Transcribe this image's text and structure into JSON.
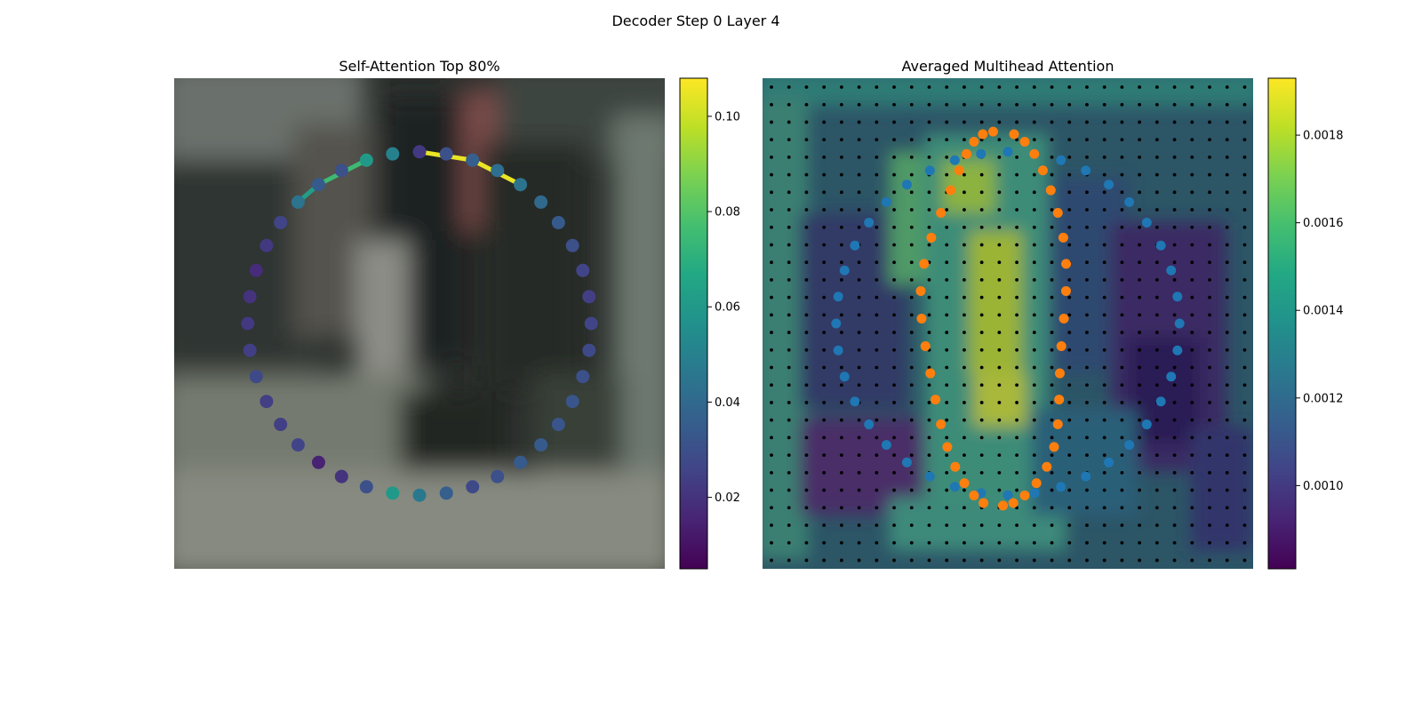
{
  "figure": {
    "suptitle": "Decoder Step 0 Layer 4"
  },
  "chart_data": [
    {
      "type": "scatter",
      "title": "Self-Attention Top 80%",
      "xlabel": "",
      "ylabel": "",
      "axes_visible": false,
      "background": "blurred street-scene photo",
      "colormap": "viridis",
      "colorbar": {
        "range": [
          0.005,
          0.108
        ],
        "ticks": [
          0.02,
          0.04,
          0.06,
          0.08,
          0.1
        ],
        "tick_labels": [
          "0.02",
          "0.04",
          "0.06",
          "0.08",
          "0.10"
        ]
      },
      "polygon_points": {
        "count": 40,
        "shape": "circle",
        "center": [
          0.5,
          0.5
        ],
        "radius": 0.35,
        "start_angle_deg": 90,
        "direction": "clockwise",
        "values": [
          0.022,
          0.03,
          0.036,
          0.042,
          0.044,
          0.04,
          0.034,
          0.03,
          0.026,
          0.024,
          0.026,
          0.028,
          0.03,
          0.032,
          0.032,
          0.034,
          0.034,
          0.03,
          0.028,
          0.036,
          0.046,
          0.06,
          0.03,
          0.02,
          0.015,
          0.026,
          0.024,
          0.024,
          0.028,
          0.024,
          0.022,
          0.02,
          0.018,
          0.022,
          0.026,
          0.044,
          0.034,
          0.03,
          0.06,
          0.05
        ]
      },
      "attention_lines": [
        {
          "from": 0,
          "to": 2,
          "value": 0.105
        },
        {
          "from": 2,
          "to": 4,
          "value": 0.105
        },
        {
          "from": 38,
          "to": 36,
          "value": 0.075
        },
        {
          "from": 36,
          "to": 35,
          "value": 0.062
        }
      ]
    },
    {
      "type": "heatmap",
      "title": "Averaged Multihead Attention",
      "xlabel": "",
      "ylabel": "",
      "axes_visible": false,
      "grid": "28x28 sampling points",
      "colormap": "viridis",
      "colorbar": {
        "range": [
          0.00081,
          0.00193
        ],
        "ticks": [
          0.001,
          0.0012,
          0.0014,
          0.0016,
          0.0018
        ],
        "tick_labels": [
          "0.0010",
          "0.0012",
          "0.0014",
          "0.0016",
          "0.0018"
        ]
      },
      "series": [
        {
          "name": "",
          "color": "#1f77b4",
          "shape": "outer circle",
          "count": 40
        },
        {
          "name": "",
          "color": "#ff7f0e",
          "shape": "inner shape",
          "count": 40
        }
      ]
    }
  ]
}
